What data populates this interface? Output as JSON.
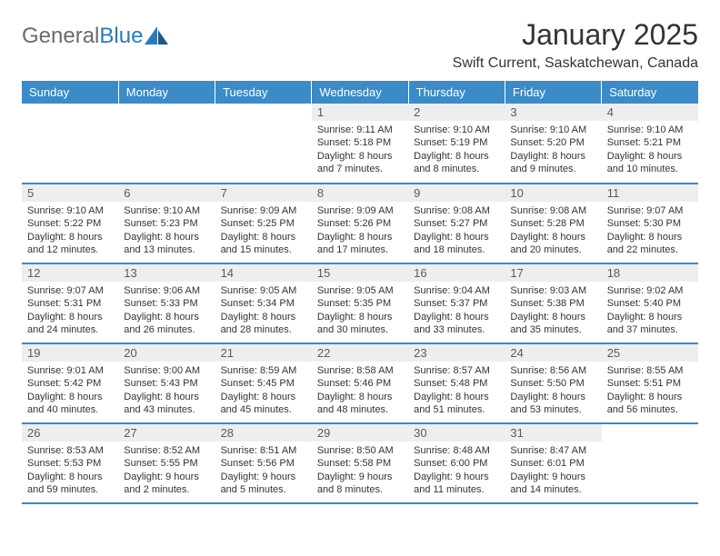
{
  "logo": {
    "text_gray": "General",
    "text_blue": "Blue"
  },
  "title": "January 2025",
  "location": "Swift Current, Saskatchewan, Canada",
  "colors": {
    "header_bg": "#3a8bc8",
    "header_text": "#ffffff",
    "daynum_bg": "#eceef0",
    "daynum_text": "#5a5a5a",
    "border": "#3a8bc8",
    "logo_gray": "#6b6b6b",
    "logo_blue": "#2a7ab8"
  },
  "typography": {
    "title_fontsize": 32,
    "location_fontsize": 16,
    "header_fontsize": 13,
    "daynum_fontsize": 13,
    "details_fontsize": 11
  },
  "days_of_week": [
    "Sunday",
    "Monday",
    "Tuesday",
    "Wednesday",
    "Thursday",
    "Friday",
    "Saturday"
  ],
  "weeks": [
    [
      null,
      null,
      null,
      {
        "num": "1",
        "sunrise": "Sunrise: 9:11 AM",
        "sunset": "Sunset: 5:18 PM",
        "daylight1": "Daylight: 8 hours",
        "daylight2": "and 7 minutes."
      },
      {
        "num": "2",
        "sunrise": "Sunrise: 9:10 AM",
        "sunset": "Sunset: 5:19 PM",
        "daylight1": "Daylight: 8 hours",
        "daylight2": "and 8 minutes."
      },
      {
        "num": "3",
        "sunrise": "Sunrise: 9:10 AM",
        "sunset": "Sunset: 5:20 PM",
        "daylight1": "Daylight: 8 hours",
        "daylight2": "and 9 minutes."
      },
      {
        "num": "4",
        "sunrise": "Sunrise: 9:10 AM",
        "sunset": "Sunset: 5:21 PM",
        "daylight1": "Daylight: 8 hours",
        "daylight2": "and 10 minutes."
      }
    ],
    [
      {
        "num": "5",
        "sunrise": "Sunrise: 9:10 AM",
        "sunset": "Sunset: 5:22 PM",
        "daylight1": "Daylight: 8 hours",
        "daylight2": "and 12 minutes."
      },
      {
        "num": "6",
        "sunrise": "Sunrise: 9:10 AM",
        "sunset": "Sunset: 5:23 PM",
        "daylight1": "Daylight: 8 hours",
        "daylight2": "and 13 minutes."
      },
      {
        "num": "7",
        "sunrise": "Sunrise: 9:09 AM",
        "sunset": "Sunset: 5:25 PM",
        "daylight1": "Daylight: 8 hours",
        "daylight2": "and 15 minutes."
      },
      {
        "num": "8",
        "sunrise": "Sunrise: 9:09 AM",
        "sunset": "Sunset: 5:26 PM",
        "daylight1": "Daylight: 8 hours",
        "daylight2": "and 17 minutes."
      },
      {
        "num": "9",
        "sunrise": "Sunrise: 9:08 AM",
        "sunset": "Sunset: 5:27 PM",
        "daylight1": "Daylight: 8 hours",
        "daylight2": "and 18 minutes."
      },
      {
        "num": "10",
        "sunrise": "Sunrise: 9:08 AM",
        "sunset": "Sunset: 5:28 PM",
        "daylight1": "Daylight: 8 hours",
        "daylight2": "and 20 minutes."
      },
      {
        "num": "11",
        "sunrise": "Sunrise: 9:07 AM",
        "sunset": "Sunset: 5:30 PM",
        "daylight1": "Daylight: 8 hours",
        "daylight2": "and 22 minutes."
      }
    ],
    [
      {
        "num": "12",
        "sunrise": "Sunrise: 9:07 AM",
        "sunset": "Sunset: 5:31 PM",
        "daylight1": "Daylight: 8 hours",
        "daylight2": "and 24 minutes."
      },
      {
        "num": "13",
        "sunrise": "Sunrise: 9:06 AM",
        "sunset": "Sunset: 5:33 PM",
        "daylight1": "Daylight: 8 hours",
        "daylight2": "and 26 minutes."
      },
      {
        "num": "14",
        "sunrise": "Sunrise: 9:05 AM",
        "sunset": "Sunset: 5:34 PM",
        "daylight1": "Daylight: 8 hours",
        "daylight2": "and 28 minutes."
      },
      {
        "num": "15",
        "sunrise": "Sunrise: 9:05 AM",
        "sunset": "Sunset: 5:35 PM",
        "daylight1": "Daylight: 8 hours",
        "daylight2": "and 30 minutes."
      },
      {
        "num": "16",
        "sunrise": "Sunrise: 9:04 AM",
        "sunset": "Sunset: 5:37 PM",
        "daylight1": "Daylight: 8 hours",
        "daylight2": "and 33 minutes."
      },
      {
        "num": "17",
        "sunrise": "Sunrise: 9:03 AM",
        "sunset": "Sunset: 5:38 PM",
        "daylight1": "Daylight: 8 hours",
        "daylight2": "and 35 minutes."
      },
      {
        "num": "18",
        "sunrise": "Sunrise: 9:02 AM",
        "sunset": "Sunset: 5:40 PM",
        "daylight1": "Daylight: 8 hours",
        "daylight2": "and 37 minutes."
      }
    ],
    [
      {
        "num": "19",
        "sunrise": "Sunrise: 9:01 AM",
        "sunset": "Sunset: 5:42 PM",
        "daylight1": "Daylight: 8 hours",
        "daylight2": "and 40 minutes."
      },
      {
        "num": "20",
        "sunrise": "Sunrise: 9:00 AM",
        "sunset": "Sunset: 5:43 PM",
        "daylight1": "Daylight: 8 hours",
        "daylight2": "and 43 minutes."
      },
      {
        "num": "21",
        "sunrise": "Sunrise: 8:59 AM",
        "sunset": "Sunset: 5:45 PM",
        "daylight1": "Daylight: 8 hours",
        "daylight2": "and 45 minutes."
      },
      {
        "num": "22",
        "sunrise": "Sunrise: 8:58 AM",
        "sunset": "Sunset: 5:46 PM",
        "daylight1": "Daylight: 8 hours",
        "daylight2": "and 48 minutes."
      },
      {
        "num": "23",
        "sunrise": "Sunrise: 8:57 AM",
        "sunset": "Sunset: 5:48 PM",
        "daylight1": "Daylight: 8 hours",
        "daylight2": "and 51 minutes."
      },
      {
        "num": "24",
        "sunrise": "Sunrise: 8:56 AM",
        "sunset": "Sunset: 5:50 PM",
        "daylight1": "Daylight: 8 hours",
        "daylight2": "and 53 minutes."
      },
      {
        "num": "25",
        "sunrise": "Sunrise: 8:55 AM",
        "sunset": "Sunset: 5:51 PM",
        "daylight1": "Daylight: 8 hours",
        "daylight2": "and 56 minutes."
      }
    ],
    [
      {
        "num": "26",
        "sunrise": "Sunrise: 8:53 AM",
        "sunset": "Sunset: 5:53 PM",
        "daylight1": "Daylight: 8 hours",
        "daylight2": "and 59 minutes."
      },
      {
        "num": "27",
        "sunrise": "Sunrise: 8:52 AM",
        "sunset": "Sunset: 5:55 PM",
        "daylight1": "Daylight: 9 hours",
        "daylight2": "and 2 minutes."
      },
      {
        "num": "28",
        "sunrise": "Sunrise: 8:51 AM",
        "sunset": "Sunset: 5:56 PM",
        "daylight1": "Daylight: 9 hours",
        "daylight2": "and 5 minutes."
      },
      {
        "num": "29",
        "sunrise": "Sunrise: 8:50 AM",
        "sunset": "Sunset: 5:58 PM",
        "daylight1": "Daylight: 9 hours",
        "daylight2": "and 8 minutes."
      },
      {
        "num": "30",
        "sunrise": "Sunrise: 8:48 AM",
        "sunset": "Sunset: 6:00 PM",
        "daylight1": "Daylight: 9 hours",
        "daylight2": "and 11 minutes."
      },
      {
        "num": "31",
        "sunrise": "Sunrise: 8:47 AM",
        "sunset": "Sunset: 6:01 PM",
        "daylight1": "Daylight: 9 hours",
        "daylight2": "and 14 minutes."
      },
      null
    ]
  ]
}
